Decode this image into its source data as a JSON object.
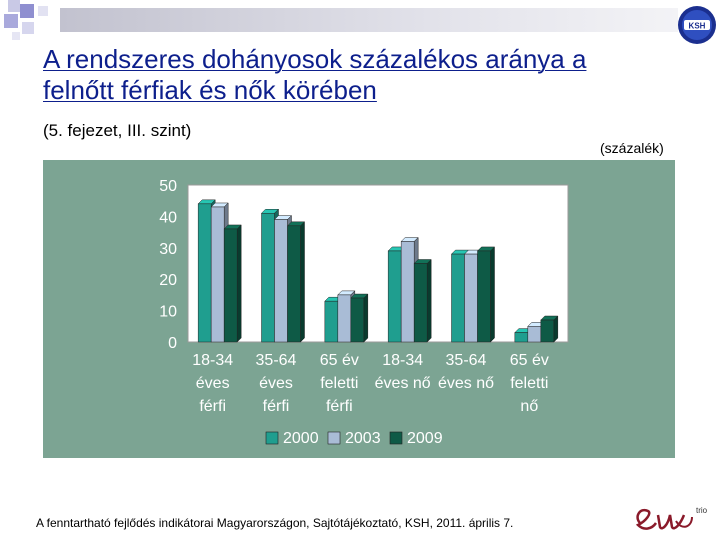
{
  "header": {
    "title": "A rendszeres dohányosok százalékos aránya a felnőtt férfiak és nők körében",
    "subtitle": "(5. fejezet, III. szint)",
    "unit": "(százalék)"
  },
  "footer": {
    "source": "A fenntartható fejlődés indikátorai Magyarországon, Sajtótájékoztató, KSH, 2011. április 7."
  },
  "logos": {
    "ksh": "KSH",
    "brand": "trio"
  },
  "chart_data": {
    "type": "bar",
    "categories": [
      [
        "18-34",
        "éves",
        "férfi"
      ],
      [
        "35-64",
        "éves",
        "férfi"
      ],
      [
        "65 év",
        "feletti",
        "férfi"
      ],
      [
        "18-34",
        "éves nő"
      ],
      [
        "35-64",
        "éves nő"
      ],
      [
        "65 év",
        "feletti",
        "nő"
      ]
    ],
    "series": [
      {
        "name": "2000",
        "color": "#1f9e8f",
        "values": [
          44,
          41,
          13,
          29,
          28,
          3
        ]
      },
      {
        "name": "2003",
        "color": "#a9bcd6",
        "values": [
          43,
          39,
          15,
          32,
          28,
          5
        ]
      },
      {
        "name": "2009",
        "color": "#0e5a46",
        "values": [
          36,
          37,
          14,
          25,
          29,
          7
        ]
      }
    ],
    "ylim": [
      0,
      50
    ],
    "yticks": [
      0,
      10,
      20,
      30,
      40,
      50
    ],
    "legend_position": "bottom",
    "grid": false
  }
}
